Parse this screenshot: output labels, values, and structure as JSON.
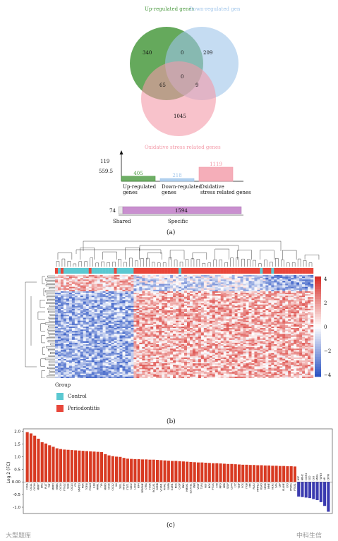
{
  "panel_a": {
    "label": "(a)",
    "venn": {
      "sets": [
        {
          "name": "Up-regulated genes",
          "color": "#4a9a3f"
        },
        {
          "name": "Down-regulated genes",
          "color": "#9ec4ea"
        },
        {
          "name": "Oxidative stress related genes",
          "color": "#f39aa8"
        }
      ],
      "regions": {
        "up_only": "340",
        "down_only": "209",
        "ox_only": "1045",
        "up_down": "0",
        "up_ox": "65",
        "down_ox": "9",
        "all": "0"
      }
    },
    "upset_bars": {
      "y_ticks": [
        "119",
        "559.5"
      ],
      "bars": [
        {
          "label": "Up-regulated genes",
          "value": 405,
          "value_label": "405",
          "color": "#4a9a3f"
        },
        {
          "label": "Down-regulated genes",
          "value": 218,
          "value_label": "218",
          "color": "#9ec4ea"
        },
        {
          "label": "Oxidative stress related genes",
          "value": 1119,
          "value_label": "1119",
          "color": "#f39aa8"
        }
      ],
      "shared_value": "74",
      "specific_value": "1594",
      "shared_label": "Shared",
      "specific_label": "Specific"
    }
  },
  "panel_b": {
    "label": "(b)",
    "scale_ticks": [
      "4",
      "2",
      "0",
      "−2",
      "−4"
    ],
    "legend_title": "Group",
    "groups": [
      {
        "name": "Control",
        "color": "#5bc8d1"
      },
      {
        "name": "Periodontitis",
        "color": "#e8463a"
      }
    ]
  },
  "panel_c": {
    "label": "(c)",
    "watermark_left": "大型题库",
    "watermark_right": "中科生信"
  },
  "chart_data": {
    "type": "bar",
    "ylabel": "Log 2 (FC)",
    "ylim": [
      -1.25,
      2.1
    ],
    "yticks": [
      "2.0",
      "1.5",
      "1.0",
      "0.5",
      "0.00",
      "-0.5",
      "-1.0"
    ],
    "categories": [
      "CCNA",
      "CXCL1",
      "CXCL6",
      "MMP7",
      "ERG",
      "PLAT",
      "TNF",
      "MMP3",
      "HMBS",
      "CXCL8",
      "PTGS2",
      "SELE",
      "CXCL5",
      "CD",
      "MMP10",
      "MSR",
      "TGFBI",
      "ITGAM",
      "IL1B",
      "MMP1",
      "TLR",
      "MMP9",
      "CD38",
      "CXCL2",
      "IL6",
      "SELL",
      "HIF1A",
      "STAT1",
      "SOD2",
      "LCN2",
      "IRF4",
      "SERPINE",
      "CYBA",
      "FCGR",
      "BCL2A1",
      "GZMB",
      "VCAM1",
      "PTPRC",
      "SIRPB",
      "ICAM1",
      "NOS",
      "CASP",
      "ENG",
      "HMOX1",
      "SLC7A11",
      "VNN",
      "VEGF",
      "TLR4",
      "NCF",
      "NOX",
      "PTGIS",
      "CYB",
      "MPO",
      "HBB",
      "SELP",
      "CD44",
      "LYZ",
      "TIMP",
      "FOS",
      "ITGB",
      "FPR",
      "PLAU",
      "MMP12",
      "RSAD",
      "NFKB",
      "MME",
      "NCF2",
      "SAA",
      "SPP",
      "ELANE",
      "CFD",
      "PPARG",
      "PTGS1",
      "HSP",
      "HRH2",
      "CXCR2",
      "SCD",
      "CA3",
      "ANXA",
      "TGFB3",
      "AR",
      "CRYM"
    ],
    "values": [
      1.97,
      1.92,
      1.83,
      1.71,
      1.57,
      1.52,
      1.45,
      1.39,
      1.33,
      1.3,
      1.28,
      1.27,
      1.26,
      1.25,
      1.24,
      1.23,
      1.22,
      1.21,
      1.2,
      1.19,
      1.18,
      1.1,
      1.05,
      1.02,
      1.0,
      0.99,
      0.95,
      0.92,
      0.91,
      0.9,
      0.9,
      0.89,
      0.89,
      0.88,
      0.88,
      0.87,
      0.86,
      0.85,
      0.84,
      0.83,
      0.83,
      0.82,
      0.81,
      0.8,
      0.79,
      0.78,
      0.77,
      0.77,
      0.76,
      0.75,
      0.74,
      0.74,
      0.73,
      0.72,
      0.71,
      0.71,
      0.7,
      0.69,
      0.68,
      0.68,
      0.67,
      0.67,
      0.66,
      0.66,
      0.65,
      0.65,
      0.64,
      0.64,
      0.63,
      0.63,
      0.62,
      0.62,
      0.61,
      -0.58,
      -0.6,
      -0.62,
      -0.64,
      -0.68,
      -0.72,
      -0.8,
      -0.95,
      -1.18
    ],
    "up_color": "#d83a22",
    "down_color": "#3b3bb0"
  }
}
